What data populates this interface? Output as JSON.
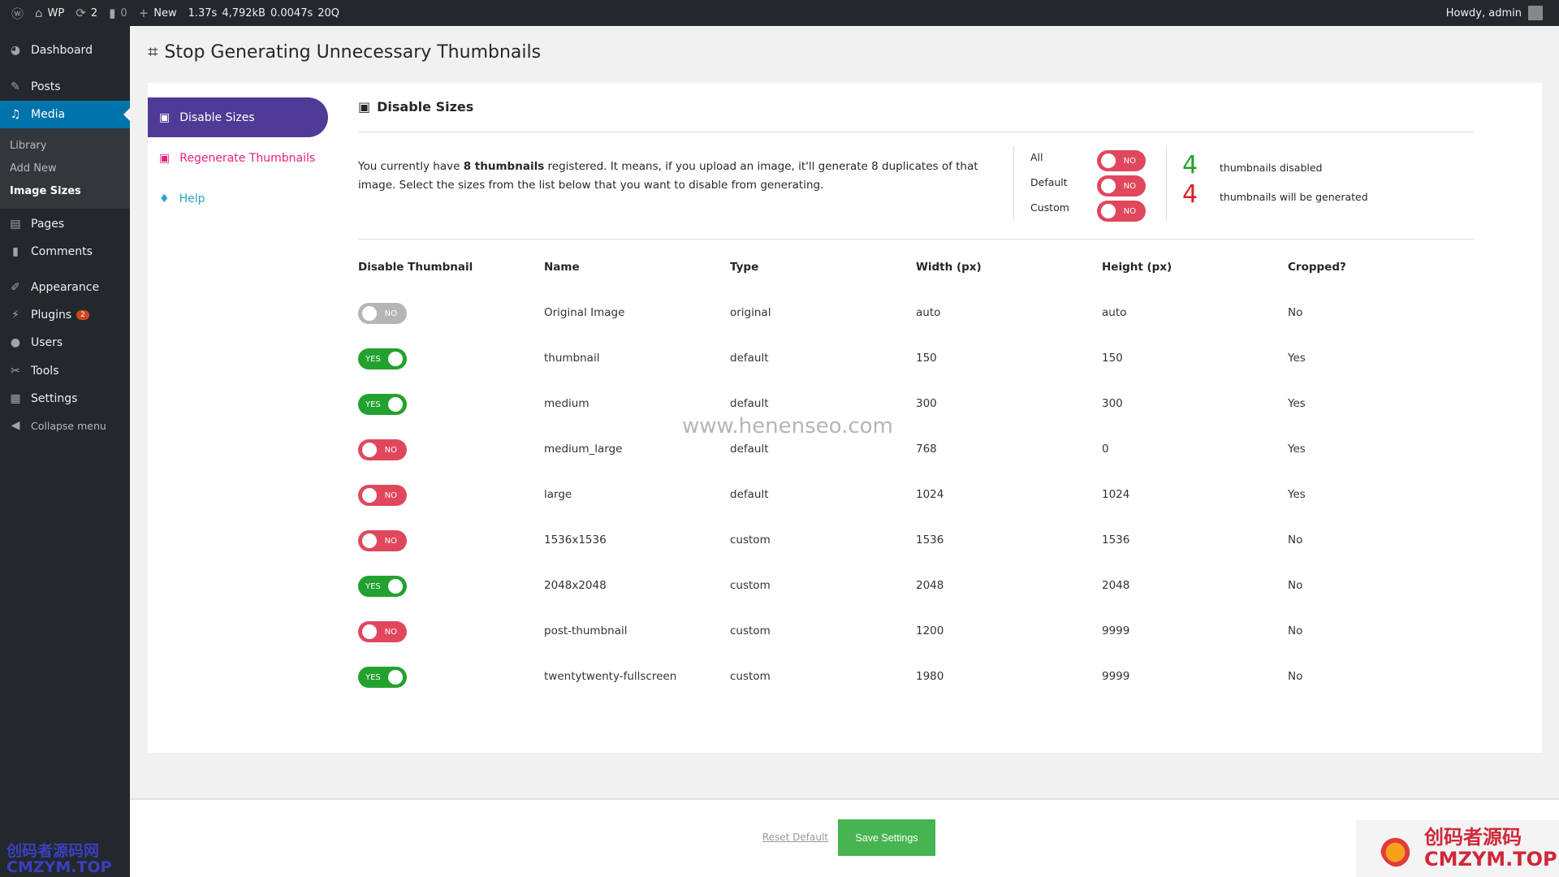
{
  "adminbar": {
    "site": "WP",
    "updates": "2",
    "comments": "0",
    "new": "New",
    "stats": [
      "1.37s",
      "4,792kB",
      "0.0047s",
      "20Q"
    ],
    "howdy": "Howdy, admin"
  },
  "sidebar": {
    "items": [
      {
        "label": "Dashboard",
        "icon": "dashboard-icon"
      },
      {
        "label": "Posts",
        "icon": "pin-icon"
      },
      {
        "label": "Media",
        "icon": "media-icon"
      },
      {
        "label": "Pages",
        "icon": "pages-icon"
      },
      {
        "label": "Comments",
        "icon": "comment-icon"
      },
      {
        "label": "Appearance",
        "icon": "brush-icon"
      },
      {
        "label": "Plugins",
        "icon": "plugin-icon",
        "badge": "2"
      },
      {
        "label": "Users",
        "icon": "user-icon"
      },
      {
        "label": "Tools",
        "icon": "wrench-icon"
      },
      {
        "label": "Settings",
        "icon": "settings-icon"
      },
      {
        "label": "Collapse menu",
        "icon": "collapse-icon"
      }
    ],
    "submenu": [
      "Library",
      "Add New",
      "Image Sizes"
    ]
  },
  "page": {
    "title": "Stop Generating Unnecessary Thumbnails"
  },
  "nav": [
    "Disable Sizes",
    "Regenerate Thumbnails",
    "Help"
  ],
  "section": {
    "title": "Disable Sizes",
    "intro_pre": "You currently have ",
    "intro_bold": "8 thumbnails",
    "intro_post": " registered. It means, if you upload an image, it'll generate 8 duplicates of that image. Select the sizes from the list below that you want to disable from generating."
  },
  "bulk": [
    {
      "label": "All",
      "state": "NO"
    },
    {
      "label": "Default",
      "state": "NO"
    },
    {
      "label": "Custom",
      "state": "NO"
    }
  ],
  "counts": [
    {
      "value": "4",
      "label": "thumbnails disabled",
      "color": "#23a12f"
    },
    {
      "value": "4",
      "label": "thumbnails will be generated",
      "color": "#dd1f1f"
    }
  ],
  "table": {
    "headers": [
      "Disable Thumbnail",
      "Name",
      "Type",
      "Width (px)",
      "Height (px)",
      "Cropped?"
    ],
    "rows": [
      {
        "state": "NO",
        "disabled": true,
        "name": "Original Image",
        "type": "original",
        "width": "auto",
        "height": "auto",
        "cropped": "No"
      },
      {
        "state": "YES",
        "name": "thumbnail",
        "type": "default",
        "width": "150",
        "height": "150",
        "cropped": "Yes"
      },
      {
        "state": "YES",
        "name": "medium",
        "type": "default",
        "width": "300",
        "height": "300",
        "cropped": "Yes"
      },
      {
        "state": "NO",
        "name": "medium_large",
        "type": "default",
        "width": "768",
        "height": "0",
        "cropped": "Yes"
      },
      {
        "state": "NO",
        "name": "large",
        "type": "default",
        "width": "1024",
        "height": "1024",
        "cropped": "Yes"
      },
      {
        "state": "NO",
        "name": "1536x1536",
        "type": "custom",
        "width": "1536",
        "height": "1536",
        "cropped": "No"
      },
      {
        "state": "YES",
        "name": "2048x2048",
        "type": "custom",
        "width": "2048",
        "height": "2048",
        "cropped": "No"
      },
      {
        "state": "NO",
        "name": "post-thumbnail",
        "type": "custom",
        "width": "1200",
        "height": "9999",
        "cropped": "No"
      },
      {
        "state": "YES",
        "name": "twentytwenty-fullscreen",
        "type": "custom",
        "width": "1980",
        "height": "9999",
        "cropped": "No"
      }
    ]
  },
  "footer": {
    "reset": "Reset Default",
    "save": "Save Settings"
  },
  "watermarks": {
    "center": "www.henenseo.com",
    "left": [
      "创码者源码网",
      "CMZYM.TOP"
    ],
    "right": [
      "创码者源码",
      "CMZYM.TOP"
    ]
  }
}
